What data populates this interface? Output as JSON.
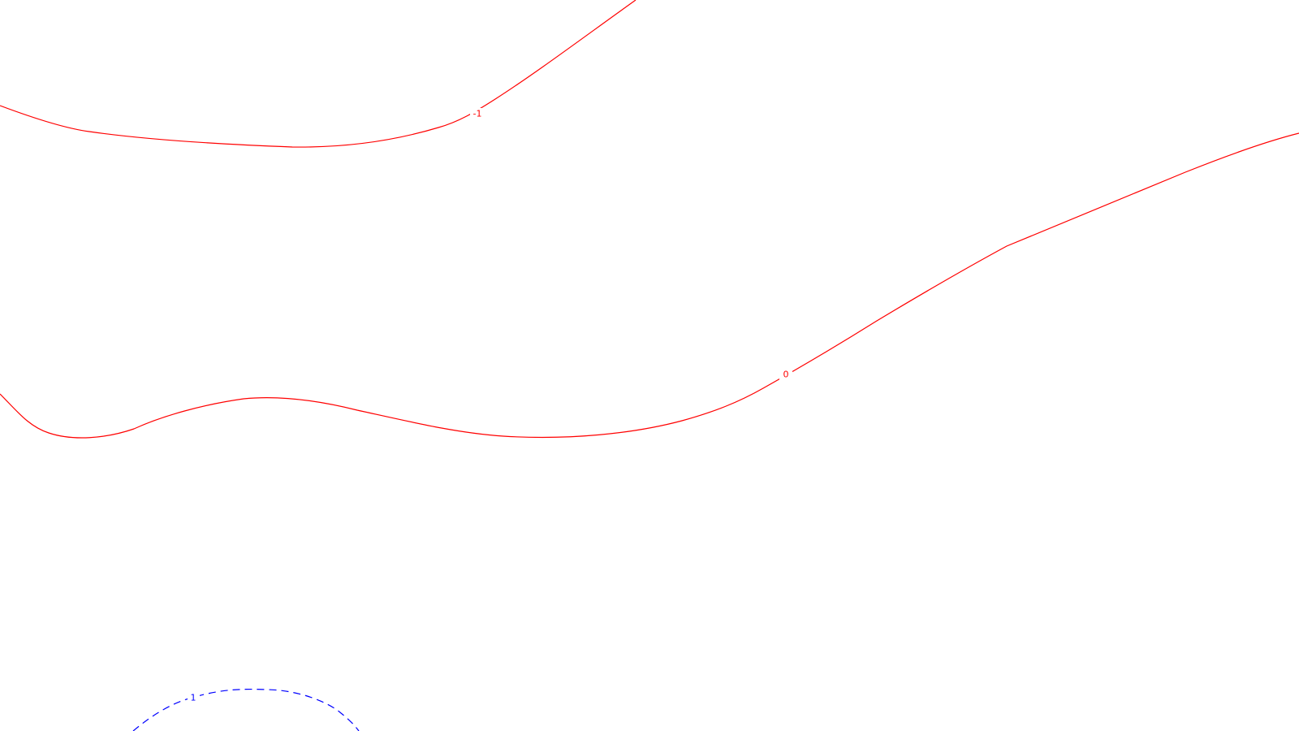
{
  "contours": [
    {
      "label": "-1",
      "color": "#ff0000",
      "style": "solid"
    },
    {
      "label": "0",
      "color": "#ff0000",
      "style": "solid"
    },
    {
      "label": "1",
      "color": "#0000ff",
      "style": "dashed"
    }
  ]
}
